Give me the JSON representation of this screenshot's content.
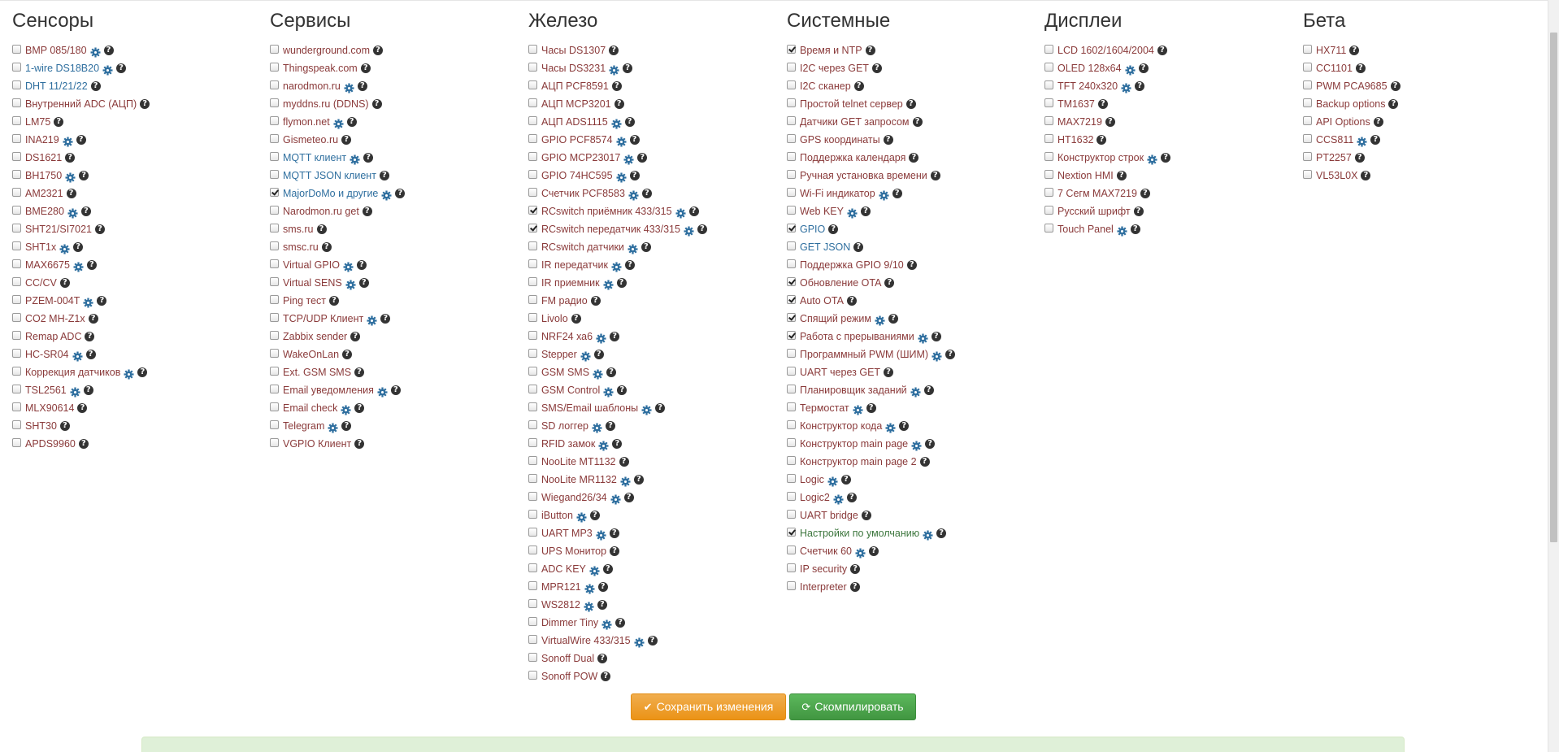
{
  "columns": [
    {
      "title": "Сенсоры",
      "items": [
        {
          "label": "BMP 085/180",
          "checked": false,
          "gear": true,
          "color": "red"
        },
        {
          "label": "1-wire DS18B20",
          "checked": false,
          "gear": true,
          "color": "blue"
        },
        {
          "label": "DHT 11/21/22",
          "checked": false,
          "gear": false,
          "color": "blue"
        },
        {
          "label": "Внутренний ADC (АЦП)",
          "checked": false,
          "gear": false,
          "color": "red"
        },
        {
          "label": "LM75",
          "checked": false,
          "gear": false,
          "color": "red"
        },
        {
          "label": "INA219",
          "checked": false,
          "gear": true,
          "color": "red"
        },
        {
          "label": "DS1621",
          "checked": false,
          "gear": false,
          "color": "red"
        },
        {
          "label": "BH1750",
          "checked": false,
          "gear": true,
          "color": "red"
        },
        {
          "label": "AM2321",
          "checked": false,
          "gear": false,
          "color": "red"
        },
        {
          "label": "BME280",
          "checked": false,
          "gear": true,
          "color": "red"
        },
        {
          "label": "SHT21/SI7021",
          "checked": false,
          "gear": false,
          "color": "red"
        },
        {
          "label": "SHT1x",
          "checked": false,
          "gear": true,
          "color": "red"
        },
        {
          "label": "MAX6675",
          "checked": false,
          "gear": true,
          "color": "red"
        },
        {
          "label": "CC/CV",
          "checked": false,
          "gear": false,
          "color": "red"
        },
        {
          "label": "PZEM-004T",
          "checked": false,
          "gear": true,
          "color": "red"
        },
        {
          "label": "CO2 MH-Z1x",
          "checked": false,
          "gear": false,
          "color": "red"
        },
        {
          "label": "Remap ADC",
          "checked": false,
          "gear": false,
          "color": "red"
        },
        {
          "label": "HC-SR04",
          "checked": false,
          "gear": true,
          "color": "red"
        },
        {
          "label": "Коррекция датчиков",
          "checked": false,
          "gear": true,
          "color": "red"
        },
        {
          "label": "TSL2561",
          "checked": false,
          "gear": true,
          "color": "red"
        },
        {
          "label": "MLX90614",
          "checked": false,
          "gear": false,
          "color": "red"
        },
        {
          "label": "SHT30",
          "checked": false,
          "gear": false,
          "color": "red"
        },
        {
          "label": "APDS9960",
          "checked": false,
          "gear": false,
          "color": "red"
        }
      ]
    },
    {
      "title": "Сервисы",
      "items": [
        {
          "label": "wunderground.com",
          "checked": false,
          "gear": false,
          "color": "red"
        },
        {
          "label": "Thingspeak.com",
          "checked": false,
          "gear": false,
          "color": "red"
        },
        {
          "label": "narodmon.ru",
          "checked": false,
          "gear": true,
          "color": "red"
        },
        {
          "label": "myddns.ru (DDNS)",
          "checked": false,
          "gear": false,
          "color": "red"
        },
        {
          "label": "flymon.net",
          "checked": false,
          "gear": true,
          "color": "red"
        },
        {
          "label": "Gismeteo.ru",
          "checked": false,
          "gear": false,
          "color": "red"
        },
        {
          "label": "MQTT клиент",
          "checked": false,
          "gear": true,
          "color": "blue"
        },
        {
          "label": "MQTT JSON клиент",
          "checked": false,
          "gear": false,
          "color": "blue"
        },
        {
          "label": "MajorDoMo и другие",
          "checked": true,
          "gear": true,
          "color": "blue"
        },
        {
          "label": "Narodmon.ru get",
          "checked": false,
          "gear": false,
          "color": "red"
        },
        {
          "label": "sms.ru",
          "checked": false,
          "gear": false,
          "color": "red"
        },
        {
          "label": "smsc.ru",
          "checked": false,
          "gear": false,
          "color": "red"
        },
        {
          "label": "Virtual GPIO",
          "checked": false,
          "gear": true,
          "color": "red"
        },
        {
          "label": "Virtual SENS",
          "checked": false,
          "gear": true,
          "color": "red"
        },
        {
          "label": "Ping тест",
          "checked": false,
          "gear": false,
          "color": "red"
        },
        {
          "label": "TCP/UDP Клиент",
          "checked": false,
          "gear": true,
          "color": "red"
        },
        {
          "label": "Zabbix sender",
          "checked": false,
          "gear": false,
          "color": "red"
        },
        {
          "label": "WakeOnLan",
          "checked": false,
          "gear": false,
          "color": "red"
        },
        {
          "label": "Ext. GSM SMS",
          "checked": false,
          "gear": false,
          "color": "red"
        },
        {
          "label": "Email уведомления",
          "checked": false,
          "gear": true,
          "color": "red"
        },
        {
          "label": "Email check",
          "checked": false,
          "gear": true,
          "color": "red"
        },
        {
          "label": "Telegram",
          "checked": false,
          "gear": true,
          "color": "red"
        },
        {
          "label": "VGPIO Клиент",
          "checked": false,
          "gear": false,
          "color": "red"
        }
      ]
    },
    {
      "title": "Железо",
      "items": [
        {
          "label": "Часы DS1307",
          "checked": false,
          "gear": false,
          "color": "red"
        },
        {
          "label": "Часы DS3231",
          "checked": false,
          "gear": true,
          "color": "red"
        },
        {
          "label": "АЦП PCF8591",
          "checked": false,
          "gear": false,
          "color": "red"
        },
        {
          "label": "АЦП MCP3201",
          "checked": false,
          "gear": false,
          "color": "red"
        },
        {
          "label": "АЦП ADS1115",
          "checked": false,
          "gear": true,
          "color": "red"
        },
        {
          "label": "GPIO PCF8574",
          "checked": false,
          "gear": true,
          "color": "red"
        },
        {
          "label": "GPIO MCP23017",
          "checked": false,
          "gear": true,
          "color": "red"
        },
        {
          "label": "GPIO 74HC595",
          "checked": false,
          "gear": true,
          "color": "red"
        },
        {
          "label": "Счетчик PCF8583",
          "checked": false,
          "gear": true,
          "color": "red"
        },
        {
          "label": "RCswitch приёмник 433/315",
          "checked": true,
          "gear": true,
          "color": "red"
        },
        {
          "label": "RCswitch передатчик 433/315",
          "checked": true,
          "gear": true,
          "color": "red"
        },
        {
          "label": "RCswitch датчики",
          "checked": false,
          "gear": true,
          "color": "red"
        },
        {
          "label": "IR передатчик",
          "checked": false,
          "gear": true,
          "color": "red"
        },
        {
          "label": "IR приемник",
          "checked": false,
          "gear": true,
          "color": "red"
        },
        {
          "label": "FM радио",
          "checked": false,
          "gear": false,
          "color": "red"
        },
        {
          "label": "Livolo",
          "checked": false,
          "gear": false,
          "color": "red"
        },
        {
          "label": "NRF24 ха6",
          "checked": false,
          "gear": true,
          "color": "red"
        },
        {
          "label": "Stepper",
          "checked": false,
          "gear": true,
          "color": "red"
        },
        {
          "label": "GSM SMS",
          "checked": false,
          "gear": true,
          "color": "red"
        },
        {
          "label": "GSM Control",
          "checked": false,
          "gear": true,
          "color": "red"
        },
        {
          "label": "SMS/Email шаблоны",
          "checked": false,
          "gear": true,
          "color": "red"
        },
        {
          "label": "SD логгер",
          "checked": false,
          "gear": true,
          "color": "red"
        },
        {
          "label": "RFID замок",
          "checked": false,
          "gear": true,
          "color": "red"
        },
        {
          "label": "NooLite MT1132",
          "checked": false,
          "gear": false,
          "color": "red"
        },
        {
          "label": "NooLite MR1132",
          "checked": false,
          "gear": true,
          "color": "red"
        },
        {
          "label": "Wiegand26/34",
          "checked": false,
          "gear": true,
          "color": "red"
        },
        {
          "label": "iButton",
          "checked": false,
          "gear": true,
          "color": "red"
        },
        {
          "label": "UART MP3",
          "checked": false,
          "gear": true,
          "color": "red"
        },
        {
          "label": "UPS Монитор",
          "checked": false,
          "gear": false,
          "color": "red"
        },
        {
          "label": "ADC KEY",
          "checked": false,
          "gear": true,
          "color": "red"
        },
        {
          "label": "MPR121",
          "checked": false,
          "gear": true,
          "color": "red"
        },
        {
          "label": "WS2812",
          "checked": false,
          "gear": true,
          "color": "red"
        },
        {
          "label": "Dimmer Tiny",
          "checked": false,
          "gear": true,
          "color": "red"
        },
        {
          "label": "VirtualWire 433/315",
          "checked": false,
          "gear": true,
          "color": "red"
        },
        {
          "label": "Sonoff Dual",
          "checked": false,
          "gear": false,
          "color": "red"
        },
        {
          "label": "Sonoff POW",
          "checked": false,
          "gear": false,
          "color": "red"
        }
      ]
    },
    {
      "title": "Системные",
      "items": [
        {
          "label": "Время и NTP",
          "checked": true,
          "gear": false,
          "color": "red"
        },
        {
          "label": "I2C через GET",
          "checked": false,
          "gear": false,
          "color": "red"
        },
        {
          "label": "I2C сканер",
          "checked": false,
          "gear": false,
          "color": "red"
        },
        {
          "label": "Простой telnet сервер",
          "checked": false,
          "gear": false,
          "color": "red"
        },
        {
          "label": "Датчики GET запросом",
          "checked": false,
          "gear": false,
          "color": "red"
        },
        {
          "label": "GPS координаты",
          "checked": false,
          "gear": false,
          "color": "red"
        },
        {
          "label": "Поддержка календаря",
          "checked": false,
          "gear": false,
          "color": "red"
        },
        {
          "label": "Ручная установка времени",
          "checked": false,
          "gear": false,
          "color": "red"
        },
        {
          "label": "Wi-Fi индикатор",
          "checked": false,
          "gear": true,
          "color": "red"
        },
        {
          "label": "Web KEY",
          "checked": false,
          "gear": true,
          "color": "red"
        },
        {
          "label": "GPIO",
          "checked": true,
          "gear": false,
          "color": "blue"
        },
        {
          "label": "GET JSON",
          "checked": false,
          "gear": false,
          "color": "blue"
        },
        {
          "label": "Поддержка GPIO 9/10",
          "checked": false,
          "gear": false,
          "color": "red"
        },
        {
          "label": "Обновление OTA",
          "checked": true,
          "gear": false,
          "color": "red"
        },
        {
          "label": "Auto OTA",
          "checked": true,
          "gear": false,
          "color": "red"
        },
        {
          "label": "Спящий режим",
          "checked": true,
          "gear": true,
          "color": "red"
        },
        {
          "label": "Работа с прерываниями",
          "checked": true,
          "gear": true,
          "color": "red"
        },
        {
          "label": "Программный PWM (ШИМ)",
          "checked": false,
          "gear": true,
          "color": "red"
        },
        {
          "label": "UART через GET",
          "checked": false,
          "gear": false,
          "color": "red"
        },
        {
          "label": "Планировщик заданий",
          "checked": false,
          "gear": true,
          "color": "red"
        },
        {
          "label": "Термостат",
          "checked": false,
          "gear": true,
          "color": "red"
        },
        {
          "label": "Конструктор кода",
          "checked": false,
          "gear": true,
          "color": "red"
        },
        {
          "label": "Конструктор main page",
          "checked": false,
          "gear": true,
          "color": "red"
        },
        {
          "label": "Конструктор main page 2",
          "checked": false,
          "gear": false,
          "color": "red"
        },
        {
          "label": "Logic",
          "checked": false,
          "gear": true,
          "color": "red"
        },
        {
          "label": "Logic2",
          "checked": false,
          "gear": true,
          "color": "red"
        },
        {
          "label": "UART bridge",
          "checked": false,
          "gear": false,
          "color": "red"
        },
        {
          "label": "Настройки по умолчанию",
          "checked": true,
          "gear": true,
          "color": "green"
        },
        {
          "label": "Счетчик 60",
          "checked": false,
          "gear": true,
          "color": "red"
        },
        {
          "label": "IP security",
          "checked": false,
          "gear": false,
          "color": "red"
        },
        {
          "label": "Interpreter",
          "checked": false,
          "gear": false,
          "color": "red"
        }
      ]
    },
    {
      "title": "Дисплеи",
      "items": [
        {
          "label": "LCD 1602/1604/2004",
          "checked": false,
          "gear": false,
          "color": "red"
        },
        {
          "label": "OLED 128x64",
          "checked": false,
          "gear": true,
          "color": "red"
        },
        {
          "label": "TFT 240x320",
          "checked": false,
          "gear": true,
          "color": "red"
        },
        {
          "label": "TM1637",
          "checked": false,
          "gear": false,
          "color": "red"
        },
        {
          "label": "MAX7219",
          "checked": false,
          "gear": false,
          "color": "red"
        },
        {
          "label": "HT1632",
          "checked": false,
          "gear": false,
          "color": "red"
        },
        {
          "label": "Конструктор строк",
          "checked": false,
          "gear": true,
          "color": "red"
        },
        {
          "label": "Nextion HMI",
          "checked": false,
          "gear": false,
          "color": "red"
        },
        {
          "label": "7 Сегм MAX7219",
          "checked": false,
          "gear": false,
          "color": "red"
        },
        {
          "label": "Русский шрифт",
          "checked": false,
          "gear": false,
          "color": "red"
        },
        {
          "label": "Touch Panel",
          "checked": false,
          "gear": true,
          "color": "red"
        }
      ]
    },
    {
      "title": "Бета",
      "items": [
        {
          "label": "HX711",
          "checked": false,
          "gear": false,
          "color": "red"
        },
        {
          "label": "CC1101",
          "checked": false,
          "gear": false,
          "color": "red"
        },
        {
          "label": "PWM PCA9685",
          "checked": false,
          "gear": false,
          "color": "red"
        },
        {
          "label": "Backup options",
          "checked": false,
          "gear": false,
          "color": "red"
        },
        {
          "label": "API Options",
          "checked": false,
          "gear": false,
          "color": "red"
        },
        {
          "label": "CCS811",
          "checked": false,
          "gear": true,
          "color": "red"
        },
        {
          "label": "PT2257",
          "checked": false,
          "gear": false,
          "color": "red"
        },
        {
          "label": "VL53L0X",
          "checked": false,
          "gear": false,
          "color": "red"
        }
      ]
    }
  ],
  "buttons": {
    "save_label": "Сохранить изменения",
    "compile_label": "Скомпилировать"
  },
  "icons": {
    "gear": "gear-icon",
    "help": "help-icon",
    "save": "check-icon",
    "compile": "refresh-icon"
  },
  "colors": {
    "label_default": "#8a3a3a",
    "label_blue": "#2f6f9f",
    "label_green": "#3c763d",
    "gear": "#2f6f9f",
    "save_button": "#f0ad4e",
    "compile_button": "#5cb85c",
    "alert_bg": "#dff0d8"
  }
}
